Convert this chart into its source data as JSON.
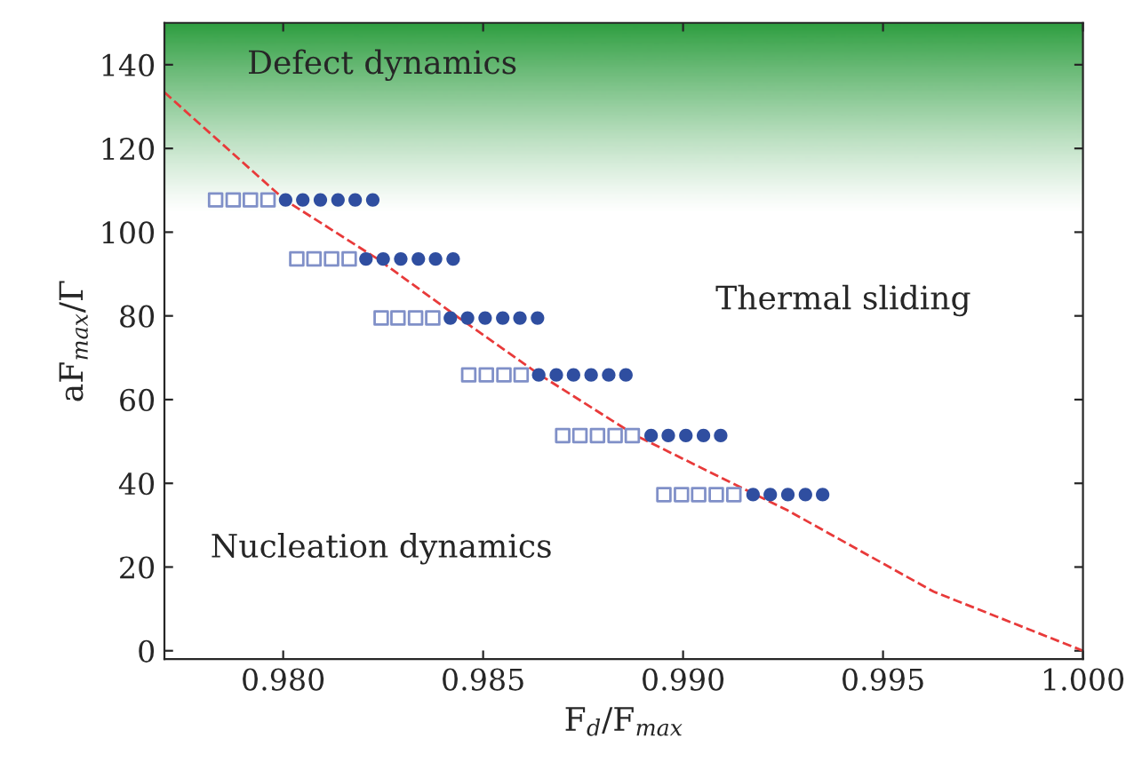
{
  "chart_data": {
    "type": "scatter",
    "xlabel": "F$_{d}$/F$_{max}$",
    "ylabel": "aF$_{max}$/Γ",
    "xlim": [
      0.97703,
      1.0
    ],
    "ylim": [
      -2,
      150
    ],
    "xticks": [
      {
        "value": 0.98,
        "label": "0.980"
      },
      {
        "value": 0.985,
        "label": "0.985"
      },
      {
        "value": 0.99,
        "label": "0.990"
      },
      {
        "value": 0.995,
        "label": "0.995"
      },
      {
        "value": 1.0,
        "label": "1.000"
      }
    ],
    "yticks": [
      0,
      20,
      40,
      60,
      80,
      100,
      120,
      140
    ],
    "grid": false,
    "legend": false,
    "annotations": [
      "Defect dynamics",
      "Thermal sliding",
      "Nucleation dynamics"
    ],
    "bands": [
      {
        "axis": "y",
        "from": 104,
        "to": 150,
        "color": "#2e9e40"
      }
    ],
    "series": [
      {
        "marker": "square",
        "color": "#8090c8",
        "x": [
          0.97831,
          0.97875,
          0.97918,
          0.97962,
          0.98034,
          0.98077,
          0.98121,
          0.98165,
          0.98245,
          0.98287,
          0.98331,
          0.98374,
          0.98464,
          0.98508,
          0.98552,
          0.98595,
          0.98699,
          0.98742,
          0.98786,
          0.9883,
          0.98873,
          0.98952,
          0.98996,
          0.99039,
          0.99083,
          0.99127
        ],
        "values": [
          107.7,
          107.7,
          107.7,
          107.7,
          93.6,
          93.6,
          93.6,
          93.6,
          79.5,
          79.5,
          79.5,
          79.5,
          65.9,
          65.9,
          65.9,
          65.9,
          51.4,
          51.4,
          51.4,
          51.4,
          51.4,
          37.3,
          37.3,
          37.3,
          37.3,
          37.3
        ]
      },
      {
        "marker": "circle",
        "color": "#2f4ea0",
        "x": [
          0.98006,
          0.98049,
          0.98093,
          0.98137,
          0.9818,
          0.98224,
          0.98207,
          0.9825,
          0.98294,
          0.98338,
          0.98381,
          0.98425,
          0.98418,
          0.98461,
          0.98505,
          0.98549,
          0.98592,
          0.98636,
          0.98639,
          0.98683,
          0.98726,
          0.9877,
          0.98814,
          0.98857,
          0.9892,
          0.98963,
          0.99007,
          0.99051,
          0.99094,
          0.99175,
          0.99218,
          0.99262,
          0.99306,
          0.99349
        ],
        "values": [
          107.7,
          107.7,
          107.7,
          107.7,
          107.7,
          107.7,
          93.6,
          93.6,
          93.6,
          93.6,
          93.6,
          93.6,
          79.5,
          79.5,
          79.5,
          79.5,
          79.5,
          79.5,
          65.9,
          65.9,
          65.9,
          65.9,
          65.9,
          65.9,
          51.4,
          51.4,
          51.4,
          51.4,
          51.4,
          37.3,
          37.3,
          37.3,
          37.3,
          37.3
        ]
      },
      {
        "type": "line",
        "line_style": "dashed",
        "color": "#e83a3a",
        "x": [
          0.97703,
          0.98004,
          0.98236,
          0.9844,
          0.98642,
          0.98882,
          0.99262,
          0.99627,
          1.0
        ],
        "values": [
          133.4,
          107.7,
          93.6,
          79.5,
          65.9,
          51.4,
          33.5,
          14.1,
          0
        ]
      }
    ]
  }
}
